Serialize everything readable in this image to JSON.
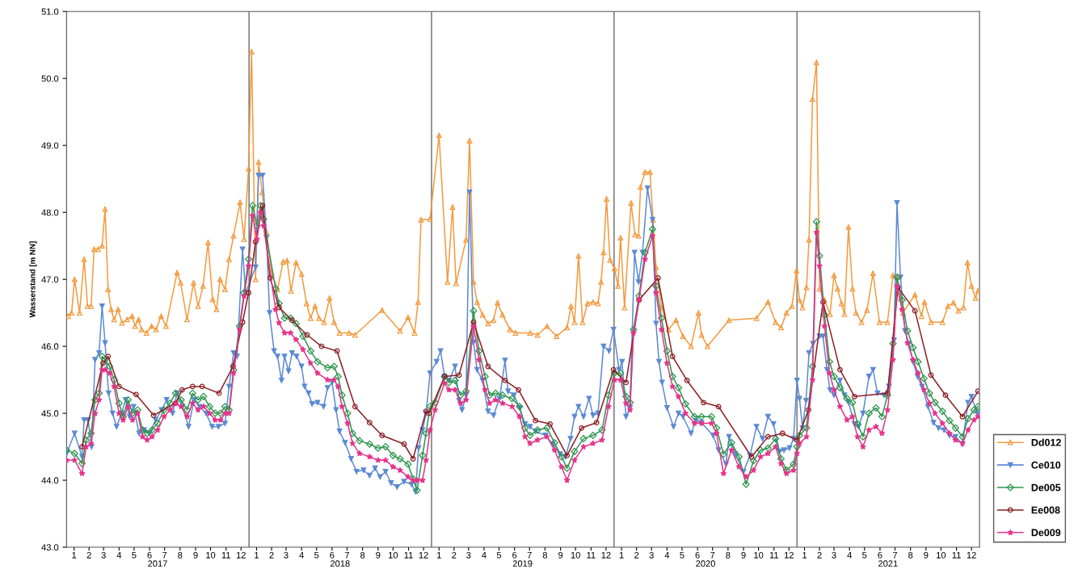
{
  "chart_data": {
    "type": "line",
    "ylabel": "Wasserstand [m NN]",
    "xlim": [
      "2017-01-01",
      "2022-01-01"
    ],
    "ylim": [
      43.0,
      51.0
    ],
    "yticks": [
      {
        "value": 43.0,
        "label": "43.0"
      },
      {
        "value": 44.0,
        "label": "44.0"
      },
      {
        "value": 45.0,
        "label": "45.0"
      },
      {
        "value": 46.0,
        "label": "46.0"
      },
      {
        "value": 47.0,
        "label": "47.0"
      },
      {
        "value": 48.0,
        "label": "48.0"
      },
      {
        "value": 49.0,
        "label": "49.0"
      },
      {
        "value": 50.0,
        "label": "50.0"
      },
      {
        "value": 51.0,
        "label": "51.0"
      }
    ],
    "xticks": [
      {
        "value": "2017-01-16",
        "label": "1"
      },
      {
        "value": "2017-02-15",
        "label": "2"
      },
      {
        "value": "2017-03-16",
        "label": "3"
      },
      {
        "value": "2017-04-16",
        "label": "4"
      },
      {
        "value": "2017-05-16",
        "label": "5"
      },
      {
        "value": "2017-06-16",
        "label": "6"
      },
      {
        "value": "2017-07-16",
        "label": "7"
      },
      {
        "value": "2017-08-16",
        "label": "8"
      },
      {
        "value": "2017-09-16",
        "label": "9"
      },
      {
        "value": "2017-10-16",
        "label": "10"
      },
      {
        "value": "2017-11-16",
        "label": "11"
      },
      {
        "value": "2017-12-16",
        "label": "12"
      },
      {
        "value": "2018-01-16",
        "label": "1"
      },
      {
        "value": "2018-02-15",
        "label": "2"
      },
      {
        "value": "2018-03-16",
        "label": "3"
      },
      {
        "value": "2018-04-16",
        "label": "4"
      },
      {
        "value": "2018-05-16",
        "label": "5"
      },
      {
        "value": "2018-06-16",
        "label": "6"
      },
      {
        "value": "2018-07-16",
        "label": "7"
      },
      {
        "value": "2018-08-16",
        "label": "8"
      },
      {
        "value": "2018-09-16",
        "label": "9"
      },
      {
        "value": "2018-10-16",
        "label": "10"
      },
      {
        "value": "2018-11-16",
        "label": "11"
      },
      {
        "value": "2018-12-16",
        "label": "12"
      },
      {
        "value": "2019-01-16",
        "label": "1"
      },
      {
        "value": "2019-02-15",
        "label": "2"
      },
      {
        "value": "2019-03-16",
        "label": "3"
      },
      {
        "value": "2019-04-16",
        "label": "4"
      },
      {
        "value": "2019-05-16",
        "label": "5"
      },
      {
        "value": "2019-06-16",
        "label": "6"
      },
      {
        "value": "2019-07-16",
        "label": "7"
      },
      {
        "value": "2019-08-16",
        "label": "8"
      },
      {
        "value": "2019-09-16",
        "label": "9"
      },
      {
        "value": "2019-10-16",
        "label": "10"
      },
      {
        "value": "2019-11-16",
        "label": "11"
      },
      {
        "value": "2019-12-16",
        "label": "12"
      },
      {
        "value": "2020-01-16",
        "label": "1"
      },
      {
        "value": "2020-02-15",
        "label": "2"
      },
      {
        "value": "2020-03-16",
        "label": "3"
      },
      {
        "value": "2020-04-16",
        "label": "4"
      },
      {
        "value": "2020-05-16",
        "label": "5"
      },
      {
        "value": "2020-06-16",
        "label": "6"
      },
      {
        "value": "2020-07-16",
        "label": "7"
      },
      {
        "value": "2020-08-16",
        "label": "8"
      },
      {
        "value": "2020-09-16",
        "label": "9"
      },
      {
        "value": "2020-10-16",
        "label": "10"
      },
      {
        "value": "2020-11-16",
        "label": "11"
      },
      {
        "value": "2020-12-16",
        "label": "12"
      },
      {
        "value": "2021-01-16",
        "label": "1"
      },
      {
        "value": "2021-02-15",
        "label": "2"
      },
      {
        "value": "2021-03-16",
        "label": "3"
      },
      {
        "value": "2021-04-16",
        "label": "4"
      },
      {
        "value": "2021-05-16",
        "label": "5"
      },
      {
        "value": "2021-06-16",
        "label": "6"
      },
      {
        "value": "2021-07-16",
        "label": "7"
      },
      {
        "value": "2021-08-16",
        "label": "8"
      },
      {
        "value": "2021-09-16",
        "label": "9"
      },
      {
        "value": "2021-10-16",
        "label": "10"
      },
      {
        "value": "2021-11-16",
        "label": "11"
      },
      {
        "value": "2021-12-16",
        "label": "12"
      }
    ],
    "x2lim": [
      "2017-01-01",
      "2022-01-01"
    ],
    "x2ticks": [
      {
        "value": "2017-07-02",
        "label": "2017"
      },
      {
        "value": "2018-07-02",
        "label": "2018"
      },
      {
        "value": "2019-07-02",
        "label": "2019"
      },
      {
        "value": "2020-07-02",
        "label": "2020"
      },
      {
        "value": "2021-07-02",
        "label": "2021"
      }
    ],
    "ref_lines": [
      {
        "axis": "x",
        "value": "2018-01-01",
        "color": "#808080"
      },
      {
        "axis": "x",
        "value": "2019-01-01",
        "color": "#808080"
      },
      {
        "axis": "x",
        "value": "2020-01-01",
        "color": "#808080"
      },
      {
        "axis": "x",
        "value": "2021-01-01",
        "color": "#808080"
      }
    ],
    "grid": false,
    "legend": "right",
    "line_style": "solid",
    "series": [
      {
        "name": "Dd012",
        "color": "#f39a3e",
        "marker": "triangle",
        "x": [
          "2017-01-04",
          "2017-01-11",
          "2017-01-17",
          "2017-01-27",
          "2017-02-05",
          "2017-02-12",
          "2017-02-19",
          "2017-02-25",
          "2017-03-05",
          "2017-03-13",
          "2017-03-19",
          "2017-03-25",
          "2017-03-31",
          "2017-04-06",
          "2017-04-14",
          "2017-04-22",
          "2017-05-02",
          "2017-05-12",
          "2017-05-18",
          "2017-05-25",
          "2017-05-31",
          "2017-06-10",
          "2017-06-20",
          "2017-06-29",
          "2017-07-09",
          "2017-07-19",
          "2017-08-10",
          "2017-08-17",
          "2017-08-30",
          "2017-09-12",
          "2017-09-21",
          "2017-10-01",
          "2017-10-11",
          "2017-10-20",
          "2017-10-28",
          "2017-11-04",
          "2017-11-14",
          "2017-11-22",
          "2017-12-01",
          "2017-12-14",
          "2017-12-22",
          "2017-12-31",
          "2018-01-06",
          "2018-01-14",
          "2018-01-20",
          "2018-01-27",
          "2018-02-05",
          "2018-02-15",
          "2018-02-27",
          "2018-03-10",
          "2018-03-18",
          "2018-03-26",
          "2018-04-05",
          "2018-04-16",
          "2018-04-26",
          "2018-05-04",
          "2018-05-13",
          "2018-05-21",
          "2018-05-31",
          "2018-06-11",
          "2018-06-20",
          "2018-07-01",
          "2018-07-20",
          "2018-08-01",
          "2018-09-24",
          "2018-10-30",
          "2018-11-15",
          "2018-11-28",
          "2018-12-05",
          "2018-12-11",
          "2018-12-29",
          "2019-01-16",
          "2019-02-02",
          "2019-02-12",
          "2019-02-19",
          "2019-03-11",
          "2019-03-18",
          "2019-03-26",
          "2019-04-02",
          "2019-04-13",
          "2019-04-24",
          "2019-05-05",
          "2019-05-13",
          "2019-05-23",
          "2019-06-07",
          "2019-06-18",
          "2019-07-17",
          "2019-08-01",
          "2019-08-20",
          "2019-09-08",
          "2019-09-29",
          "2019-10-07",
          "2019-10-14",
          "2019-10-22",
          "2019-10-30",
          "2019-11-09",
          "2019-11-20",
          "2019-11-30",
          "2019-12-06",
          "2019-12-11",
          "2019-12-17",
          "2019-12-24",
          "2020-01-02",
          "2020-01-09",
          "2020-01-14",
          "2020-01-22",
          "2020-02-04",
          "2020-02-12",
          "2020-02-19",
          "2020-02-23",
          "2020-03-03",
          "2020-03-13",
          "2020-03-19",
          "2020-03-25",
          "2020-04-05",
          "2020-04-19",
          "2020-05-04",
          "2020-05-18",
          "2020-06-03",
          "2020-06-18",
          "2020-06-24",
          "2020-07-06",
          "2020-08-18",
          "2020-10-12",
          "2020-11-04",
          "2020-11-19",
          "2020-11-30",
          "2020-12-11",
          "2020-12-22",
          "2020-12-31",
          "2021-01-06",
          "2021-01-12",
          "2021-01-20",
          "2021-01-25",
          "2021-02-01",
          "2021-02-09",
          "2021-02-15",
          "2021-02-25",
          "2021-03-08",
          "2021-03-16",
          "2021-03-23",
          "2021-03-31",
          "2021-04-06",
          "2021-04-14",
          "2021-04-22",
          "2021-04-29",
          "2021-05-10",
          "2021-05-21",
          "2021-06-02",
          "2021-06-15",
          "2021-07-01",
          "2021-07-12",
          "2021-07-20",
          "2021-08-01",
          "2021-08-25",
          "2021-09-07",
          "2021-09-13",
          "2021-09-26",
          "2021-10-19",
          "2021-10-30",
          "2021-11-10",
          "2021-11-20",
          "2021-11-30",
          "2021-12-08",
          "2021-12-16",
          "2021-12-24",
          "2021-12-29"
        ],
        "values": [
          46.45,
          46.5,
          47.0,
          46.5,
          47.3,
          46.6,
          46.6,
          47.45,
          47.45,
          47.5,
          48.05,
          46.85,
          46.55,
          46.4,
          46.55,
          46.35,
          46.4,
          46.45,
          46.3,
          46.4,
          46.25,
          46.2,
          46.3,
          46.25,
          46.45,
          46.3,
          47.1,
          46.95,
          46.4,
          46.95,
          46.6,
          46.9,
          47.55,
          46.7,
          46.55,
          47.0,
          46.85,
          47.3,
          47.65,
          48.15,
          47.6,
          48.65,
          50.4,
          47.0,
          48.75,
          48.3,
          47.7,
          47.1,
          46.85,
          47.26,
          47.28,
          46.83,
          47.25,
          47.08,
          46.64,
          46.42,
          46.6,
          46.42,
          46.36,
          46.72,
          46.36,
          46.2,
          46.2,
          46.17,
          46.54,
          46.23,
          46.43,
          46.2,
          46.66,
          47.89,
          47.9,
          49.15,
          46.96,
          48.08,
          46.94,
          47.59,
          49.07,
          46.96,
          46.66,
          46.47,
          46.34,
          46.39,
          46.65,
          46.47,
          46.25,
          46.2,
          46.2,
          46.17,
          46.3,
          46.15,
          46.28,
          46.6,
          46.36,
          47.35,
          46.36,
          46.64,
          46.66,
          46.64,
          46.96,
          47.4,
          48.2,
          47.29,
          47.16,
          46.9,
          47.62,
          46.58,
          48.14,
          47.67,
          47.65,
          48.38,
          48.6,
          48.6,
          47.89,
          47.18,
          46.58,
          46.25,
          46.39,
          46.15,
          46.0,
          46.5,
          46.17,
          46.0,
          46.39,
          46.42,
          46.66,
          46.36,
          46.28,
          46.5,
          46.6,
          47.13,
          46.69,
          46.58,
          46.88,
          47.59,
          49.69,
          50.24,
          46.86,
          46.69,
          46.48,
          47.06,
          46.86,
          46.64,
          46.48,
          47.78,
          46.86,
          46.5,
          46.36,
          46.54,
          47.09,
          46.36,
          46.36,
          47.06,
          47.03,
          46.5,
          46.77,
          46.45,
          46.66,
          46.36,
          46.36,
          46.6,
          46.65,
          46.53,
          46.58,
          47.25,
          46.9,
          46.72,
          46.83
        ]
      },
      {
        "name": "Ce010",
        "color": "#5b8ad4",
        "marker": "triangle",
        "x": [
          "2017-01-01",
          "2017-01-17",
          "2017-02-01",
          "2017-02-05",
          "2017-02-13",
          "2017-02-20",
          "2017-02-27",
          "2017-03-07",
          "2017-03-13",
          "2017-03-19",
          "2017-03-26",
          "2017-04-03",
          "2017-04-11",
          "2017-04-21",
          "2017-04-29",
          "2017-05-07",
          "2017-05-15",
          "2017-05-26",
          "2017-06-05",
          "2017-06-16",
          "2017-06-28",
          "2017-07-10",
          "2017-07-20",
          "2017-08-01",
          "2017-08-10",
          "2017-08-21",
          "2017-09-02",
          "2017-09-13",
          "2017-09-24",
          "2017-10-07",
          "2017-10-19",
          "2017-11-01",
          "2017-11-14",
          "2017-11-22",
          "2017-12-01",
          "2017-12-08",
          "2017-12-19",
          "2017-12-25",
          "2018-01-14",
          "2018-01-20",
          "2018-01-28",
          "2018-02-05",
          "2018-02-11",
          "2018-02-20",
          "2018-02-27",
          "2018-03-07",
          "2018-03-13",
          "2018-03-21",
          "2018-03-28",
          "2018-04-06",
          "2018-04-16",
          "2018-04-22",
          "2018-04-30",
          "2018-05-07",
          "2018-05-18",
          "2018-05-30",
          "2018-06-07",
          "2018-06-16",
          "2018-06-24",
          "2018-07-01",
          "2018-07-12",
          "2018-07-24",
          "2018-08-04",
          "2018-08-18",
          "2018-08-30",
          "2018-09-10",
          "2018-09-20",
          "2018-10-01",
          "2018-10-12",
          "2018-10-24",
          "2018-11-07",
          "2018-11-22",
          "2018-11-30",
          "2018-12-06",
          "2018-12-14",
          "2018-12-21",
          "2018-12-29",
          "2019-01-11",
          "2019-01-19",
          "2019-01-27",
          "2019-02-05",
          "2019-02-17",
          "2019-02-25",
          "2019-03-03",
          "2019-03-11",
          "2019-03-18",
          "2019-03-26",
          "2019-04-02",
          "2019-04-13",
          "2019-04-24",
          "2019-05-05",
          "2019-05-17",
          "2019-05-28",
          "2019-06-03",
          "2019-06-15",
          "2019-06-26",
          "2019-07-07",
          "2019-07-17",
          "2019-07-28",
          "2019-08-17",
          "2019-08-31",
          "2019-09-15",
          "2019-09-26",
          "2019-10-06",
          "2019-10-14",
          "2019-10-22",
          "2019-11-01",
          "2019-11-12",
          "2019-11-20",
          "2019-11-30",
          "2019-12-11",
          "2019-12-22",
          "2019-12-31",
          "2020-01-11",
          "2020-01-17",
          "2020-01-25",
          "2020-02-02",
          "2020-02-11",
          "2020-02-19",
          "2020-02-27",
          "2020-03-08",
          "2020-03-18",
          "2020-03-25",
          "2020-03-31",
          "2020-04-06",
          "2020-04-16",
          "2020-04-29",
          "2020-05-09",
          "2020-05-18",
          "2020-06-03",
          "2020-06-13",
          "2020-06-24",
          "2020-07-17",
          "2020-07-28",
          "2020-08-12",
          "2020-08-18",
          "2020-08-31",
          "2020-09-16",
          "2020-09-29",
          "2020-10-12",
          "2020-10-24",
          "2020-11-04",
          "2020-11-15",
          "2020-11-27",
          "2020-12-06",
          "2020-12-17",
          "2020-12-25",
          "2021-01-01",
          "2021-01-06",
          "2021-01-12",
          "2021-01-19",
          "2021-01-25",
          "2021-02-02",
          "2021-02-15",
          "2021-02-22",
          "2021-03-02",
          "2021-03-08",
          "2021-03-16",
          "2021-03-28",
          "2021-04-06",
          "2021-04-14",
          "2021-04-26",
          "2021-05-04",
          "2021-05-13",
          "2021-05-25",
          "2021-06-02",
          "2021-06-11",
          "2021-06-24",
          "2021-07-04",
          "2021-07-14",
          "2021-07-20",
          "2021-07-27",
          "2021-08-05",
          "2021-08-13",
          "2021-08-21",
          "2021-08-30",
          "2021-09-08",
          "2021-09-20",
          "2021-10-01",
          "2021-10-11",
          "2021-10-22",
          "2021-11-02",
          "2021-11-14",
          "2021-11-28",
          "2021-12-09",
          "2021-12-16",
          "2021-12-27"
        ],
        "values": [
          44.4,
          44.7,
          44.35,
          44.9,
          44.9,
          44.5,
          45.8,
          45.9,
          46.6,
          46.05,
          45.3,
          45.0,
          44.8,
          45.0,
          45.2,
          44.95,
          45.1,
          44.7,
          44.75,
          44.7,
          44.9,
          45.05,
          45.2,
          45.0,
          45.3,
          45.1,
          44.8,
          45.2,
          45.1,
          45.0,
          44.8,
          44.8,
          44.85,
          45.4,
          45.9,
          45.85,
          47.45,
          46.8,
          47.18,
          48.55,
          48.55,
          47.62,
          46.5,
          45.93,
          45.85,
          45.49,
          45.85,
          45.63,
          45.9,
          45.85,
          45.7,
          45.4,
          45.3,
          45.14,
          45.16,
          45.1,
          45.38,
          45.46,
          45.05,
          44.73,
          44.56,
          44.32,
          44.13,
          44.15,
          44.07,
          44.18,
          44.05,
          44.13,
          43.96,
          43.9,
          43.98,
          43.94,
          43.83,
          44.48,
          44.75,
          45.0,
          45.6,
          45.77,
          45.93,
          45.55,
          45.49,
          45.7,
          45.19,
          45.05,
          45.27,
          48.3,
          46.06,
          45.65,
          45.49,
          45.03,
          44.97,
          45.22,
          45.79,
          45.33,
          45.27,
          45.08,
          44.84,
          44.8,
          44.73,
          44.67,
          44.54,
          44.39,
          44.35,
          44.62,
          44.95,
          45.1,
          44.95,
          45.22,
          44.97,
          45.0,
          46.0,
          45.93,
          46.25,
          45.65,
          45.77,
          44.95,
          45.08,
          47.4,
          46.96,
          47.4,
          48.36,
          47.89,
          46.34,
          45.77,
          45.46,
          45.08,
          44.8,
          45.0,
          44.95,
          44.7,
          44.89,
          44.86,
          44.67,
          44.45,
          44.24,
          44.65,
          44.39,
          44.13,
          44.37,
          44.8,
          44.62,
          44.95,
          44.84,
          44.43,
          44.45,
          44.48,
          44.62,
          45.49,
          45.22,
          44.78,
          45.19,
          45.9,
          46.04,
          46.15,
          46.15,
          45.65,
          45.35,
          45.27,
          45.49,
          45.27,
          45.16,
          44.84,
          44.8,
          45.0,
          45.55,
          45.65,
          45.3,
          45.27,
          45.4,
          46.09,
          48.14,
          47.03,
          46.23,
          46.04,
          45.77,
          45.55,
          45.4,
          45.1,
          44.86,
          44.78,
          44.75,
          44.67,
          44.65,
          44.54,
          45.16,
          45.25,
          45.0
        ]
      },
      {
        "name": "De005",
        "color": "#2f9550",
        "marker": "diamond",
        "x": [
          "2017-01-01",
          "2017-01-17",
          "2017-02-01",
          "2017-02-09",
          "2017-02-19",
          "2017-02-27",
          "2017-03-07",
          "2017-03-13",
          "2017-03-19",
          "2017-03-28",
          "2017-04-06",
          "2017-04-16",
          "2017-04-24",
          "2017-05-04",
          "2017-05-13",
          "2017-05-23",
          "2017-06-02",
          "2017-06-11",
          "2017-06-21",
          "2017-07-02",
          "2017-07-15",
          "2017-07-27",
          "2017-08-07",
          "2017-08-18",
          "2017-08-30",
          "2017-09-10",
          "2017-09-21",
          "2017-10-02",
          "2017-10-14",
          "2017-10-25",
          "2017-11-05",
          "2017-11-14",
          "2017-11-22",
          "2017-12-01",
          "2017-12-13",
          "2017-12-22",
          "2017-12-31",
          "2018-01-08",
          "2018-01-17",
          "2018-01-24",
          "2018-01-30",
          "2018-02-23",
          "2018-03-02",
          "2018-03-13",
          "2018-03-25",
          "2018-04-05",
          "2018-04-19",
          "2018-05-04",
          "2018-05-18",
          "2018-06-07",
          "2018-06-20",
          "2018-06-28",
          "2018-07-06",
          "2018-07-17",
          "2018-07-27",
          "2018-08-10",
          "2018-08-30",
          "2018-09-16",
          "2018-10-01",
          "2018-10-16",
          "2018-10-30",
          "2018-11-15",
          "2018-11-25",
          "2018-12-03",
          "2018-12-14",
          "2018-12-21",
          "2018-12-29",
          "2019-01-08",
          "2019-01-27",
          "2019-02-05",
          "2019-02-17",
          "2019-02-28",
          "2019-03-11",
          "2019-03-26",
          "2019-04-06",
          "2019-04-18",
          "2019-04-27",
          "2019-05-09",
          "2019-05-23",
          "2019-06-11",
          "2019-06-26",
          "2019-07-07",
          "2019-07-17",
          "2019-08-01",
          "2019-08-20",
          "2019-09-04",
          "2019-09-18",
          "2019-09-29",
          "2019-10-14",
          "2019-11-01",
          "2019-11-20",
          "2019-12-08",
          "2019-12-21",
          "2020-01-02",
          "2020-01-14",
          "2020-01-25",
          "2020-02-02",
          "2020-02-09",
          "2020-02-20",
          "2020-03-03",
          "2020-03-18",
          "2020-03-25",
          "2020-04-05",
          "2020-04-16",
          "2020-04-27",
          "2020-05-09",
          "2020-05-23",
          "2020-06-10",
          "2020-06-24",
          "2020-07-14",
          "2020-07-24",
          "2020-08-07",
          "2020-08-23",
          "2020-09-07",
          "2020-09-21",
          "2020-10-06",
          "2020-10-20",
          "2020-11-04",
          "2020-11-19",
          "2020-11-30",
          "2020-12-11",
          "2020-12-25",
          "2021-01-01",
          "2021-01-06",
          "2021-01-20",
          "2021-02-01",
          "2021-02-09",
          "2021-02-15",
          "2021-02-25",
          "2021-03-07",
          "2021-03-16",
          "2021-03-28",
          "2021-04-11",
          "2021-04-22",
          "2021-05-02",
          "2021-05-13",
          "2021-05-25",
          "2021-06-08",
          "2021-06-20",
          "2021-07-01",
          "2021-07-12",
          "2021-07-20",
          "2021-07-30",
          "2021-08-10",
          "2021-08-21",
          "2021-08-31",
          "2021-09-12",
          "2021-09-23",
          "2021-10-04",
          "2021-10-19",
          "2021-11-02",
          "2021-11-14",
          "2021-11-28",
          "2021-12-09",
          "2021-12-21",
          "2021-12-29"
        ],
        "values": [
          44.45,
          44.4,
          44.25,
          44.6,
          44.7,
          45.2,
          45.3,
          45.85,
          45.8,
          45.7,
          45.5,
          45.15,
          44.95,
          45.2,
          45.0,
          45.05,
          44.75,
          44.7,
          44.75,
          44.85,
          45.05,
          45.15,
          45.3,
          45.2,
          45.05,
          45.3,
          45.2,
          45.25,
          45.1,
          45.0,
          45.0,
          45.1,
          45.05,
          45.65,
          46.3,
          46.8,
          47.3,
          48.1,
          47.8,
          48.1,
          47.9,
          46.86,
          46.64,
          46.42,
          46.42,
          46.34,
          46.15,
          45.93,
          45.77,
          45.68,
          45.7,
          45.55,
          45.27,
          45.0,
          44.7,
          44.59,
          44.54,
          44.48,
          44.5,
          44.37,
          44.32,
          44.24,
          44.02,
          43.85,
          44.37,
          44.7,
          45.1,
          45.16,
          45.55,
          45.46,
          45.49,
          45.27,
          45.33,
          46.53,
          45.93,
          45.55,
          45.27,
          45.3,
          45.27,
          45.22,
          45.1,
          44.78,
          44.67,
          44.75,
          44.78,
          44.56,
          44.35,
          44.18,
          44.43,
          44.62,
          44.67,
          44.75,
          45.27,
          45.6,
          45.6,
          45.25,
          45.16,
          46.25,
          46.75,
          47.4,
          47.75,
          46.9,
          46.42,
          45.93,
          45.55,
          45.38,
          45.14,
          44.95,
          44.95,
          44.95,
          44.78,
          44.39,
          44.56,
          44.35,
          43.94,
          44.29,
          44.45,
          44.48,
          44.62,
          44.32,
          44.15,
          44.24,
          44.5,
          44.67,
          44.78,
          45.7,
          47.86,
          47.35,
          46.47,
          45.77,
          45.55,
          45.38,
          45.22,
          45.16,
          44.84,
          44.65,
          45.0,
          45.08,
          44.95,
          45.27,
          46.04,
          47.03,
          46.69,
          46.23,
          45.98,
          45.77,
          45.52,
          45.3,
          45.16,
          45.03,
          44.89,
          44.78,
          44.65,
          44.92,
          45.05,
          45.1
        ]
      },
      {
        "name": "Ee008",
        "color": "#8b1f24",
        "marker": "circle",
        "x": [
          "2017-02-01",
          "2017-03-15",
          "2017-03-25",
          "2017-04-16",
          "2017-05-20",
          "2017-06-24",
          "2017-08-07",
          "2017-08-20",
          "2017-09-10",
          "2017-09-29",
          "2017-11-02",
          "2017-11-30",
          "2017-12-19",
          "2017-12-31",
          "2018-01-14",
          "2018-01-28",
          "2018-02-12",
          "2018-03-02",
          "2018-03-28",
          "2018-04-27",
          "2018-05-26",
          "2018-06-26",
          "2018-08-01",
          "2018-08-30",
          "2018-09-24",
          "2018-11-07",
          "2018-11-25",
          "2018-12-21",
          "2018-12-27",
          "2019-01-27",
          "2019-02-25",
          "2019-03-26",
          "2019-04-24",
          "2019-05-28",
          "2019-06-24",
          "2019-07-28",
          "2019-08-26",
          "2019-09-29",
          "2019-10-28",
          "2019-11-27",
          "2019-12-31",
          "2020-01-25",
          "2020-02-20",
          "2020-03-29",
          "2020-04-27",
          "2020-05-26",
          "2020-06-28",
          "2020-07-28",
          "2020-10-02",
          "2020-11-04",
          "2020-12-03",
          "2021-01-01",
          "2021-01-24",
          "2021-02-22",
          "2021-03-28",
          "2021-04-26",
          "2021-07-01",
          "2021-07-22",
          "2021-08-25",
          "2021-09-26",
          "2021-10-25",
          "2021-11-28",
          "2021-12-29"
        ],
        "values": [
          44.5,
          45.75,
          45.85,
          45.4,
          45.28,
          44.97,
          45.15,
          45.35,
          45.4,
          45.4,
          45.3,
          45.7,
          46.36,
          46.8,
          47.56,
          48.1,
          47.02,
          46.58,
          46.39,
          46.17,
          46.0,
          45.93,
          45.1,
          44.86,
          44.67,
          44.54,
          44.32,
          45.03,
          45.0,
          45.55,
          45.57,
          46.36,
          45.7,
          45.49,
          45.35,
          44.89,
          44.84,
          44.37,
          44.78,
          44.86,
          45.65,
          45.46,
          46.69,
          47.02,
          45.85,
          45.49,
          45.16,
          45.1,
          44.35,
          44.65,
          44.7,
          44.6,
          45.05,
          46.66,
          45.65,
          45.25,
          45.3,
          46.88,
          46.53,
          45.57,
          45.27,
          44.95,
          45.33
        ]
      },
      {
        "name": "De009",
        "color": "#e6338a",
        "marker": "star",
        "x": [
          "2017-01-01",
          "2017-01-17",
          "2017-02-01",
          "2017-02-09",
          "2017-02-19",
          "2017-02-27",
          "2017-03-07",
          "2017-03-13",
          "2017-03-19",
          "2017-03-28",
          "2017-04-06",
          "2017-04-16",
          "2017-04-24",
          "2017-05-04",
          "2017-05-13",
          "2017-05-23",
          "2017-06-02",
          "2017-06-11",
          "2017-06-21",
          "2017-07-02",
          "2017-07-15",
          "2017-07-27",
          "2017-08-07",
          "2017-08-18",
          "2017-08-30",
          "2017-09-10",
          "2017-09-21",
          "2017-10-02",
          "2017-10-14",
          "2017-10-25",
          "2017-11-05",
          "2017-11-14",
          "2017-11-22",
          "2017-12-01",
          "2017-12-13",
          "2017-12-22",
          "2017-12-31",
          "2018-01-08",
          "2018-01-17",
          "2018-01-24",
          "2018-01-30",
          "2018-02-23",
          "2018-03-02",
          "2018-03-13",
          "2018-03-25",
          "2018-04-05",
          "2018-04-19",
          "2018-05-04",
          "2018-05-18",
          "2018-06-07",
          "2018-06-20",
          "2018-06-28",
          "2018-07-06",
          "2018-07-17",
          "2018-07-27",
          "2018-08-10",
          "2018-08-30",
          "2018-09-16",
          "2018-10-01",
          "2018-10-16",
          "2018-10-30",
          "2018-11-15",
          "2018-11-25",
          "2018-12-03",
          "2018-12-14",
          "2018-12-21",
          "2018-12-29",
          "2019-01-08",
          "2019-01-27",
          "2019-02-05",
          "2019-02-17",
          "2019-02-28",
          "2019-03-11",
          "2019-03-26",
          "2019-04-06",
          "2019-04-18",
          "2019-04-27",
          "2019-05-09",
          "2019-05-23",
          "2019-06-11",
          "2019-06-26",
          "2019-07-07",
          "2019-07-17",
          "2019-08-01",
          "2019-08-20",
          "2019-09-04",
          "2019-09-18",
          "2019-09-29",
          "2019-10-14",
          "2019-11-01",
          "2019-11-20",
          "2019-12-08",
          "2019-12-21",
          "2020-01-02",
          "2020-01-14",
          "2020-01-25",
          "2020-02-02",
          "2020-02-09",
          "2020-02-20",
          "2020-03-03",
          "2020-03-18",
          "2020-03-25",
          "2020-04-05",
          "2020-04-16",
          "2020-04-27",
          "2020-05-09",
          "2020-05-23",
          "2020-06-10",
          "2020-06-24",
          "2020-07-14",
          "2020-07-24",
          "2020-08-07",
          "2020-08-23",
          "2020-09-07",
          "2020-09-21",
          "2020-10-06",
          "2020-10-20",
          "2020-11-04",
          "2020-11-19",
          "2020-11-30",
          "2020-12-11",
          "2020-12-25",
          "2021-01-01",
          "2021-01-06",
          "2021-01-20",
          "2021-02-01",
          "2021-02-09",
          "2021-02-15",
          "2021-02-25",
          "2021-03-07",
          "2021-03-16",
          "2021-03-28",
          "2021-04-11",
          "2021-04-22",
          "2021-05-02",
          "2021-05-13",
          "2021-05-25",
          "2021-06-08",
          "2021-06-20",
          "2021-07-01",
          "2021-07-12",
          "2021-07-20",
          "2021-07-30",
          "2021-08-10",
          "2021-08-21",
          "2021-08-31",
          "2021-09-12",
          "2021-09-23",
          "2021-10-04",
          "2021-10-19",
          "2021-11-02",
          "2021-11-14",
          "2021-11-28",
          "2021-12-09",
          "2021-12-21",
          "2021-12-29"
        ],
        "values": [
          44.3,
          44.3,
          44.1,
          44.5,
          44.55,
          45.0,
          45.2,
          45.65,
          45.65,
          45.6,
          45.4,
          45.0,
          44.9,
          45.1,
          44.9,
          45.0,
          44.65,
          44.6,
          44.65,
          44.75,
          44.95,
          45.05,
          45.15,
          45.1,
          44.95,
          45.15,
          45.05,
          45.1,
          45.0,
          44.9,
          44.9,
          45.0,
          45.0,
          45.6,
          46.25,
          46.75,
          47.2,
          47.95,
          47.6,
          48.0,
          47.8,
          46.55,
          46.35,
          46.2,
          46.2,
          46.1,
          45.95,
          45.75,
          45.6,
          45.5,
          45.5,
          45.4,
          45.1,
          44.85,
          44.55,
          44.4,
          44.35,
          44.3,
          44.3,
          44.2,
          44.15,
          44.05,
          44.0,
          44.0,
          44.0,
          44.3,
          44.75,
          45.05,
          45.45,
          45.35,
          45.35,
          45.15,
          45.2,
          46.3,
          45.8,
          45.35,
          45.15,
          45.2,
          45.15,
          45.1,
          44.95,
          44.65,
          44.55,
          44.6,
          44.65,
          44.45,
          44.2,
          44.0,
          44.3,
          44.5,
          44.55,
          44.6,
          45.1,
          45.5,
          45.5,
          45.15,
          45.05,
          46.2,
          46.7,
          47.3,
          47.65,
          46.8,
          46.25,
          45.75,
          45.4,
          45.25,
          45.0,
          44.85,
          44.85,
          44.85,
          44.7,
          44.1,
          44.45,
          44.2,
          44.05,
          44.15,
          44.35,
          44.4,
          44.5,
          44.25,
          44.1,
          44.15,
          44.4,
          44.55,
          44.65,
          45.5,
          47.7,
          47.2,
          46.3,
          45.6,
          45.35,
          45.1,
          44.9,
          44.95,
          44.65,
          44.5,
          44.75,
          44.8,
          44.7,
          45.05,
          45.8,
          46.9,
          46.55,
          46.05,
          45.8,
          45.6,
          45.35,
          45.15,
          45.0,
          44.85,
          44.7,
          44.6,
          44.55,
          44.75,
          44.9,
          44.95
        ]
      }
    ]
  }
}
